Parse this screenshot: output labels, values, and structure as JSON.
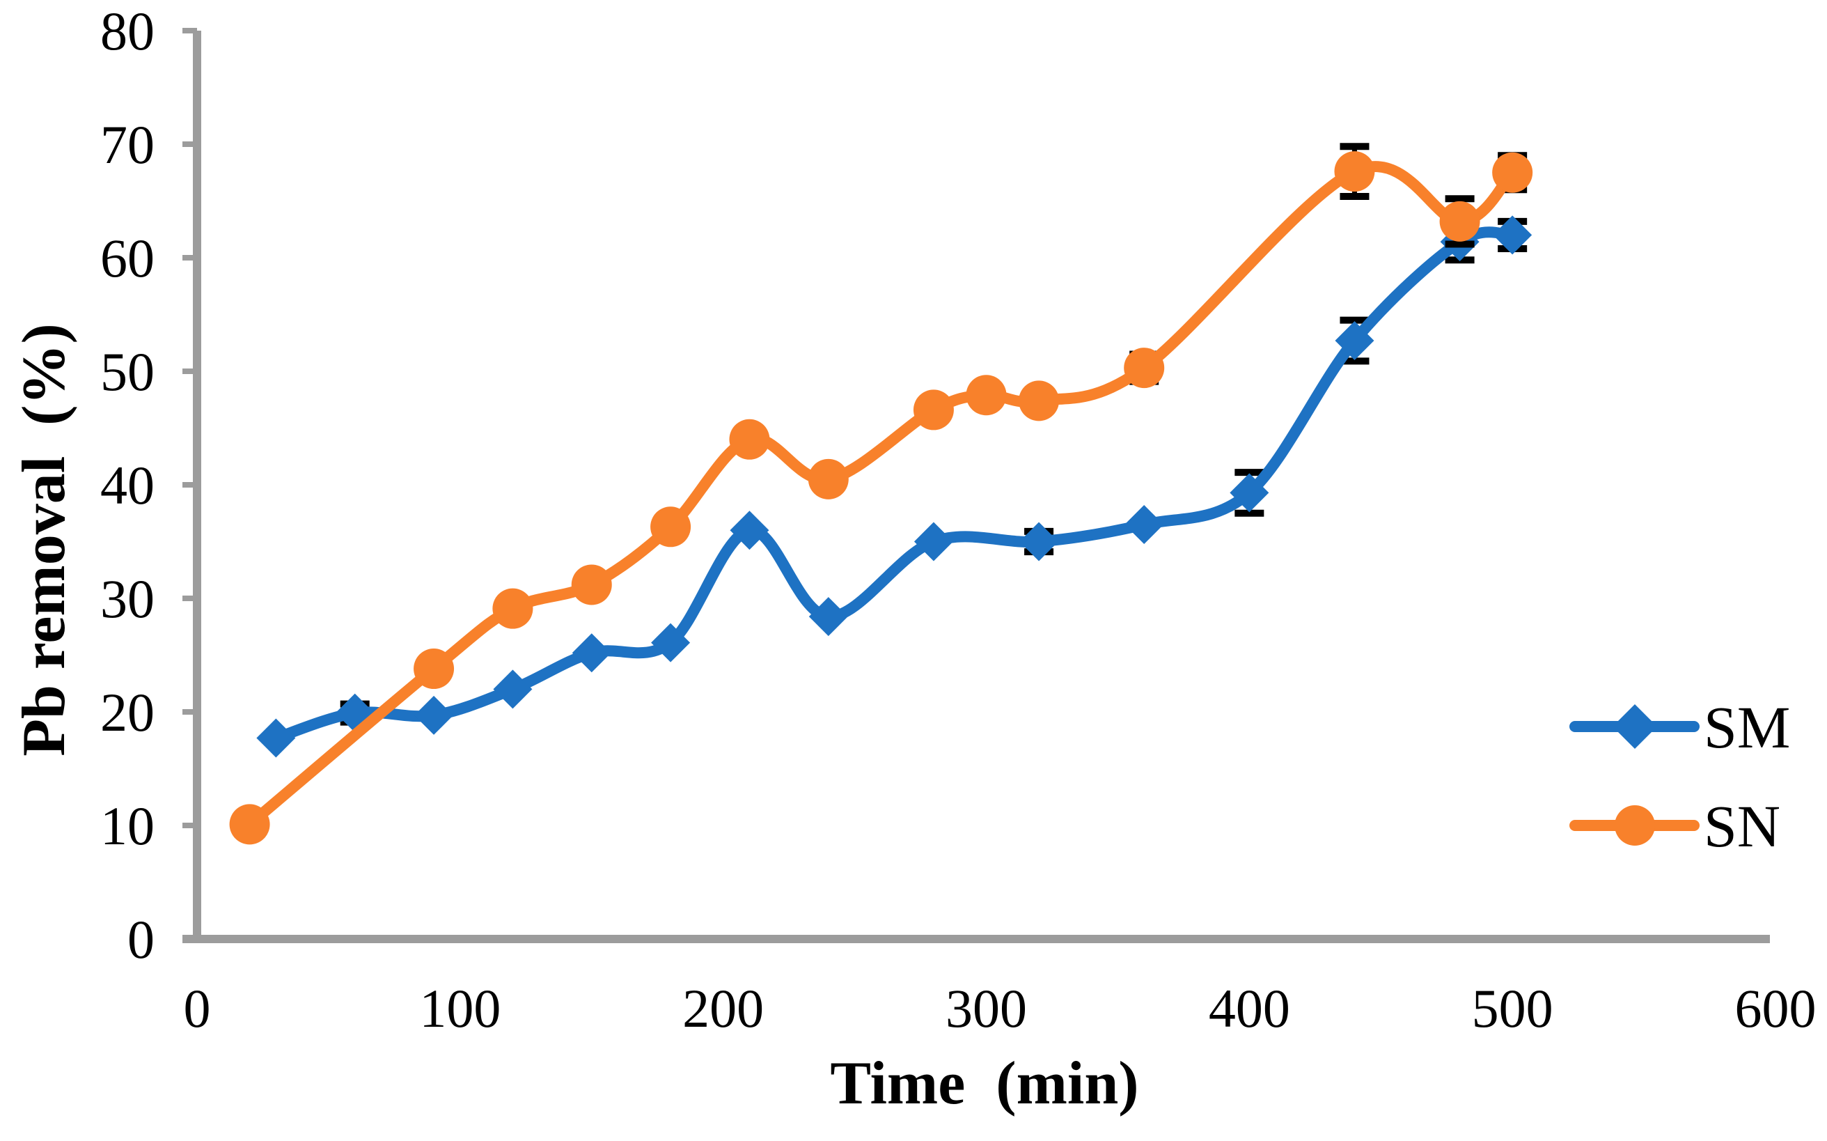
{
  "chart_data": {
    "type": "line",
    "title": "",
    "xlabel": "Time  (min)",
    "ylabel": "Pb removal  (%)",
    "x_axis": {
      "min": 0,
      "max": 600,
      "ticks": [
        0,
        100,
        200,
        300,
        400,
        500,
        600
      ]
    },
    "y_axis": {
      "min": 0,
      "max": 80,
      "ticks": [
        0,
        10,
        20,
        30,
        40,
        50,
        60,
        70,
        80
      ]
    },
    "grid": false,
    "line_style": "smooth",
    "legend_position": "right-middle",
    "axis_color": "#9C9C9C",
    "error_bar_color": "#000000",
    "series": [
      {
        "name": "SM",
        "marker": "diamond",
        "color": "#1E72C3",
        "points": [
          {
            "t": 30,
            "v": 17.7,
            "err": null
          },
          {
            "t": 60,
            "v": 19.9,
            "err": 0.8
          },
          {
            "t": 90,
            "v": 19.7,
            "err": null
          },
          {
            "t": 120,
            "v": 22.0,
            "err": null
          },
          {
            "t": 150,
            "v": 25.2,
            "err": null
          },
          {
            "t": 180,
            "v": 26.1,
            "err": null
          },
          {
            "t": 210,
            "v": 36.0,
            "err": null
          },
          {
            "t": 240,
            "v": 28.4,
            "err": null
          },
          {
            "t": 280,
            "v": 35.0,
            "err": null
          },
          {
            "t": 320,
            "v": 35.0,
            "err": 0.9
          },
          {
            "t": 360,
            "v": 36.5,
            "err": null
          },
          {
            "t": 400,
            "v": 39.3,
            "err": 1.8
          },
          {
            "t": 440,
            "v": 52.7,
            "err": 1.8
          },
          {
            "t": 480,
            "v": 61.4,
            "err": 1.6
          },
          {
            "t": 500,
            "v": 62.0,
            "err": 1.2
          }
        ]
      },
      {
        "name": "SN",
        "marker": "circle",
        "color": "#F8812B",
        "points": [
          {
            "t": 20,
            "v": 10.1,
            "err": null
          },
          {
            "t": 90,
            "v": 23.8,
            "err": null
          },
          {
            "t": 120,
            "v": 29.1,
            "err": null
          },
          {
            "t": 150,
            "v": 31.2,
            "err": null
          },
          {
            "t": 180,
            "v": 36.3,
            "err": null
          },
          {
            "t": 210,
            "v": 44.0,
            "err": null
          },
          {
            "t": 240,
            "v": 40.5,
            "err": null
          },
          {
            "t": 280,
            "v": 46.6,
            "err": null
          },
          {
            "t": 300,
            "v": 47.9,
            "err": null
          },
          {
            "t": 320,
            "v": 47.4,
            "err": null
          },
          {
            "t": 360,
            "v": 50.3,
            "err": 1.2
          },
          {
            "t": 440,
            "v": 67.6,
            "err": 2.2
          },
          {
            "t": 480,
            "v": 63.2,
            "err": 2.0
          },
          {
            "t": 500,
            "v": 67.5,
            "err": 1.5
          }
        ]
      }
    ]
  }
}
